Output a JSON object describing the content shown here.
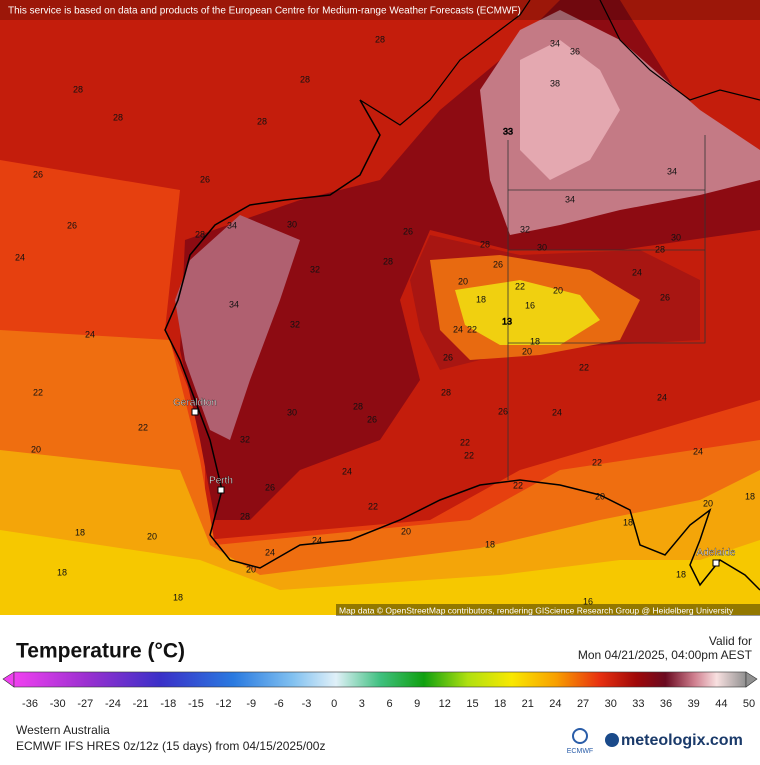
{
  "header": {
    "attribution": "This service is based on data and products of the European Centre for Medium-range Weather Forecasts (ECMWF)"
  },
  "map": {
    "cities": [
      "Geraldton",
      "Perth",
      "Adelaide"
    ],
    "contour_labels": [
      "28",
      "28",
      "28",
      "28",
      "28",
      "26",
      "26",
      "26",
      "24",
      "24",
      "22",
      "22",
      "20",
      "18",
      "20",
      "18",
      "18",
      "34",
      "34",
      "28",
      "30",
      "32",
      "32",
      "30",
      "32",
      "26",
      "28",
      "28",
      "26",
      "24",
      "22",
      "20",
      "24",
      "24",
      "20",
      "18",
      "34",
      "36",
      "38",
      "33",
      "34",
      "34",
      "32",
      "28",
      "26",
      "20",
      "18",
      "16",
      "20",
      "22",
      "13",
      "18",
      "20",
      "24",
      "22",
      "26",
      "28",
      "26",
      "24",
      "22",
      "24",
      "22",
      "22",
      "24",
      "22",
      "22",
      "20",
      "18",
      "20",
      "18",
      "18",
      "16",
      "26",
      "24",
      "28",
      "30",
      "26",
      "30",
      "28"
    ],
    "credit": "Map data © OpenStreetMap contributors, rendering GIScience Research Group @ Heidelberg University"
  },
  "legend": {
    "title": "Temperature (°C)",
    "valid_label": "Valid for",
    "valid_time": "Mon 04/21/2025, 04:00pm AEST",
    "ticks": [
      -36,
      -30,
      -27,
      -24,
      -21,
      -18,
      -15,
      -12,
      -9,
      -6,
      -3,
      0,
      3,
      6,
      9,
      12,
      15,
      18,
      21,
      24,
      27,
      30,
      33,
      36,
      39,
      44,
      50
    ]
  },
  "footer": {
    "region": "Western Australia",
    "model": "ECMWF IFS HRES 0z/12z (15 days) from 04/15/2025/00z",
    "ecmwf": "ECMWF",
    "brand": "meteologix.com"
  }
}
